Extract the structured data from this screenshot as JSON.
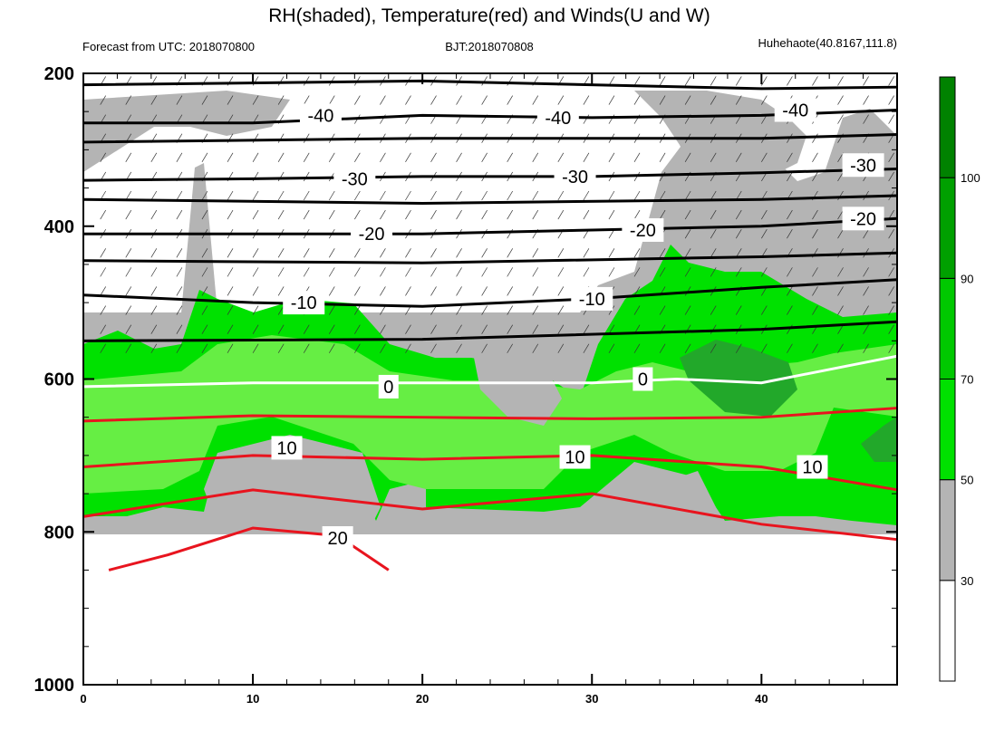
{
  "chart_data": {
    "type": "contour",
    "title": "RH(shaded), Temperature(red) and Winds(U and W)",
    "left_string": "Forecast from UTC: 2018070800",
    "center_string": "BJT:2018070808",
    "right_string": "Huhehaote(40.8167,111.8)",
    "x_axis": {
      "range": [
        0,
        48
      ],
      "ticks": [
        "0",
        "10",
        "20",
        "30",
        "40"
      ]
    },
    "y_axis": {
      "range": [
        200,
        1000
      ],
      "ticks": [
        "200",
        "400",
        "600",
        "800",
        "1000"
      ]
    },
    "colorbar": {
      "levels": [
        "30",
        "50",
        "70",
        "90",
        "100"
      ],
      "colors": [
        "#ffffff",
        "#b4b4b4",
        "#00e100",
        "#00c800",
        "#00a000",
        "#008200"
      ]
    },
    "colors": {
      "temperature_line": "#e8141e",
      "zero_isotherm": "#ffffff",
      "isotherm": "#000000",
      "rh_30_50": "#b4b4b4",
      "rh_50_70": "#66ee44",
      "rh_70_90": "#00e100",
      "rh_90_100": "#22a82a",
      "rh_100": "#008200"
    },
    "temperature_isotherm_labels": [
      "-40",
      "-40",
      "-40",
      "-30",
      "-30",
      "-30",
      "-20",
      "-20",
      "-20",
      "-10",
      "-10"
    ],
    "temperature_red_labels": [
      "0",
      "0",
      "10",
      "10",
      "10",
      "20"
    ],
    "series": [
      {
        "name": "T=-40",
        "x": [
          0,
          10,
          20,
          30,
          40,
          48
        ],
        "y": [
          265,
          265,
          255,
          258,
          255,
          248
        ]
      },
      {
        "name": "T=-30",
        "x": [
          0,
          10,
          20,
          30,
          40,
          48
        ],
        "y": [
          340,
          338,
          335,
          335,
          330,
          325
        ]
      },
      {
        "name": "T=-20",
        "x": [
          0,
          10,
          20,
          30,
          40,
          48
        ],
        "y": [
          410,
          410,
          410,
          405,
          400,
          390
        ]
      },
      {
        "name": "T=-10",
        "x": [
          0,
          10,
          20,
          30,
          40,
          48
        ],
        "y": [
          490,
          500,
          505,
          495,
          480,
          470
        ]
      },
      {
        "name": "T=0",
        "x": [
          0,
          10,
          20,
          30,
          35,
          40,
          48
        ],
        "y": [
          610,
          605,
          605,
          605,
          600,
          605,
          570
        ]
      },
      {
        "name": "T=10",
        "x": [
          0,
          10,
          20,
          30,
          40,
          48
        ],
        "y": [
          715,
          700,
          705,
          700,
          715,
          745
        ]
      },
      {
        "name": "T=20",
        "x": [
          1.5,
          5,
          10,
          15,
          18
        ],
        "y": [
          850,
          830,
          795,
          805,
          850
        ]
      }
    ]
  }
}
